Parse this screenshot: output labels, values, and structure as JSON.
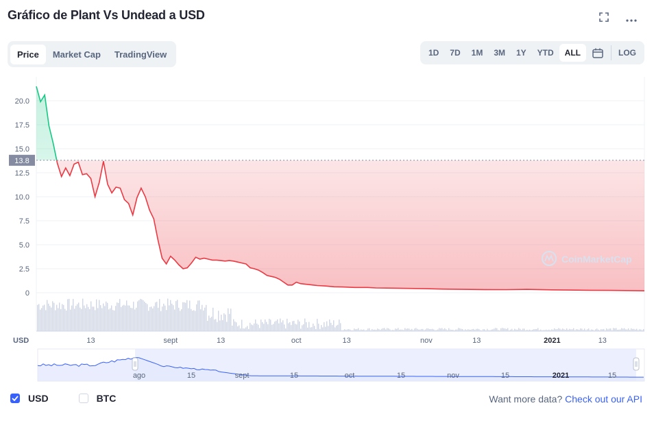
{
  "header": {
    "title": "Gráfico de Plant Vs Undead a USD",
    "tabs": [
      "Price",
      "Market Cap",
      "TradingView"
    ],
    "active_tab": 0,
    "ranges": [
      "1D",
      "7D",
      "1M",
      "3M",
      "1Y",
      "YTD",
      "ALL"
    ],
    "active_range": 6,
    "log_label": "LOG"
  },
  "legend": {
    "usd": "USD",
    "btc": "BTC",
    "usd_checked": true,
    "btc_checked": false
  },
  "api": {
    "prefix": "Want more data?",
    "link": "Check out our API"
  },
  "colors": {
    "up": "#16c784",
    "down": "#ea3943",
    "grid": "#eff2f5",
    "axis_text": "#58667e",
    "volume": "#cfd6e4",
    "navigator_fill": "#e3e8fd",
    "navigator_line": "#3861fb",
    "badge": "#858ca2"
  },
  "chart_data": {
    "type": "area",
    "yaxis_unit": "USD",
    "reference_value": 13.8,
    "y_ticks": [
      0,
      2.5,
      5.0,
      7.5,
      10.0,
      12.5,
      15.0,
      17.5,
      20.0
    ],
    "y_tick_labels": [
      "0",
      "2.5",
      "5.0",
      "7.5",
      "10.0",
      "12.5",
      "15.0",
      "17.5",
      "20.0"
    ],
    "ylim": [
      0,
      22.5
    ],
    "grid": true,
    "watermark": "CoinMarketCap",
    "x_ticks": [
      {
        "date": "2021-08-13",
        "label": "13",
        "bold": false
      },
      {
        "date": "2021-09-01",
        "label": "sept",
        "bold": false
      },
      {
        "date": "2021-09-13",
        "label": "13",
        "bold": false
      },
      {
        "date": "2021-10-01",
        "label": "oct",
        "bold": false
      },
      {
        "date": "2021-10-13",
        "label": "13",
        "bold": false
      },
      {
        "date": "2021-11-01",
        "label": "nov",
        "bold": false
      },
      {
        "date": "2021-11-13",
        "label": "13",
        "bold": false
      },
      {
        "date": "2021-12-01",
        "label": "2021",
        "bold": true
      },
      {
        "date": "2021-12-13",
        "label": "13",
        "bold": false
      }
    ],
    "xlim": [
      "2021-07-31",
      "2021-12-23"
    ],
    "series": [
      {
        "values": [
          [
            "2021-07-31",
            21.5
          ],
          [
            "2021-08-01",
            19.9
          ],
          [
            "2021-08-02",
            20.6
          ],
          [
            "2021-08-03",
            17.4
          ],
          [
            "2021-08-04",
            15.6
          ],
          [
            "2021-08-05",
            13.5
          ],
          [
            "2021-08-06",
            12.1
          ],
          [
            "2021-08-07",
            13.0
          ],
          [
            "2021-08-08",
            12.2
          ],
          [
            "2021-08-09",
            13.4
          ],
          [
            "2021-08-10",
            13.6
          ],
          [
            "2021-08-11",
            12.3
          ],
          [
            "2021-08-12",
            12.4
          ],
          [
            "2021-08-13",
            11.9
          ],
          [
            "2021-08-14",
            10.0
          ],
          [
            "2021-08-15",
            11.5
          ],
          [
            "2021-08-16",
            13.7
          ],
          [
            "2021-08-17",
            11.3
          ],
          [
            "2021-08-18",
            10.4
          ],
          [
            "2021-08-19",
            11.0
          ],
          [
            "2021-08-20",
            10.9
          ],
          [
            "2021-08-21",
            9.7
          ],
          [
            "2021-08-22",
            9.3
          ],
          [
            "2021-08-23",
            8.1
          ],
          [
            "2021-08-24",
            9.9
          ],
          [
            "2021-08-25",
            10.9
          ],
          [
            "2021-08-26",
            10.0
          ],
          [
            "2021-08-27",
            8.6
          ],
          [
            "2021-08-28",
            7.7
          ],
          [
            "2021-08-29",
            5.5
          ],
          [
            "2021-08-30",
            3.6
          ],
          [
            "2021-08-31",
            3.0
          ],
          [
            "2021-09-01",
            3.8
          ],
          [
            "2021-09-02",
            3.4
          ],
          [
            "2021-09-03",
            2.9
          ],
          [
            "2021-09-04",
            2.5
          ],
          [
            "2021-09-05",
            2.6
          ],
          [
            "2021-09-06",
            3.1
          ],
          [
            "2021-09-07",
            3.7
          ],
          [
            "2021-09-08",
            3.5
          ],
          [
            "2021-09-09",
            3.6
          ],
          [
            "2021-09-10",
            3.5
          ],
          [
            "2021-09-11",
            3.4
          ],
          [
            "2021-09-12",
            3.4
          ],
          [
            "2021-09-13",
            3.35
          ],
          [
            "2021-09-14",
            3.3
          ],
          [
            "2021-09-15",
            3.35
          ],
          [
            "2021-09-16",
            3.3
          ],
          [
            "2021-09-17",
            3.2
          ],
          [
            "2021-09-18",
            3.1
          ],
          [
            "2021-09-19",
            3.0
          ],
          [
            "2021-09-20",
            2.6
          ],
          [
            "2021-09-21",
            2.5
          ],
          [
            "2021-09-22",
            2.35
          ],
          [
            "2021-09-23",
            2.1
          ],
          [
            "2021-09-24",
            1.8
          ],
          [
            "2021-09-25",
            1.7
          ],
          [
            "2021-09-26",
            1.6
          ],
          [
            "2021-09-27",
            1.4
          ],
          [
            "2021-09-28",
            1.1
          ],
          [
            "2021-09-29",
            0.8
          ],
          [
            "2021-09-30",
            0.8
          ],
          [
            "2021-10-01",
            1.1
          ],
          [
            "2021-10-02",
            0.95
          ],
          [
            "2021-10-03",
            0.9
          ],
          [
            "2021-10-04",
            0.85
          ],
          [
            "2021-10-05",
            0.8
          ],
          [
            "2021-10-06",
            0.75
          ],
          [
            "2021-10-08",
            0.7
          ],
          [
            "2021-10-10",
            0.62
          ],
          [
            "2021-10-12",
            0.6
          ],
          [
            "2021-10-15",
            0.55
          ],
          [
            "2021-10-18",
            0.55
          ],
          [
            "2021-10-20",
            0.5
          ],
          [
            "2021-10-24",
            0.48
          ],
          [
            "2021-10-28",
            0.45
          ],
          [
            "2021-11-01",
            0.42
          ],
          [
            "2021-11-05",
            0.38
          ],
          [
            "2021-11-10",
            0.35
          ],
          [
            "2021-11-15",
            0.33
          ],
          [
            "2021-11-20",
            0.32
          ],
          [
            "2021-11-25",
            0.35
          ],
          [
            "2021-11-28",
            0.33
          ],
          [
            "2021-12-01",
            0.3
          ],
          [
            "2021-12-05",
            0.28
          ],
          [
            "2021-12-10",
            0.26
          ],
          [
            "2021-12-15",
            0.24
          ],
          [
            "2021-12-20",
            0.22
          ],
          [
            "2021-12-23",
            0.2
          ]
        ]
      }
    ]
  }
}
